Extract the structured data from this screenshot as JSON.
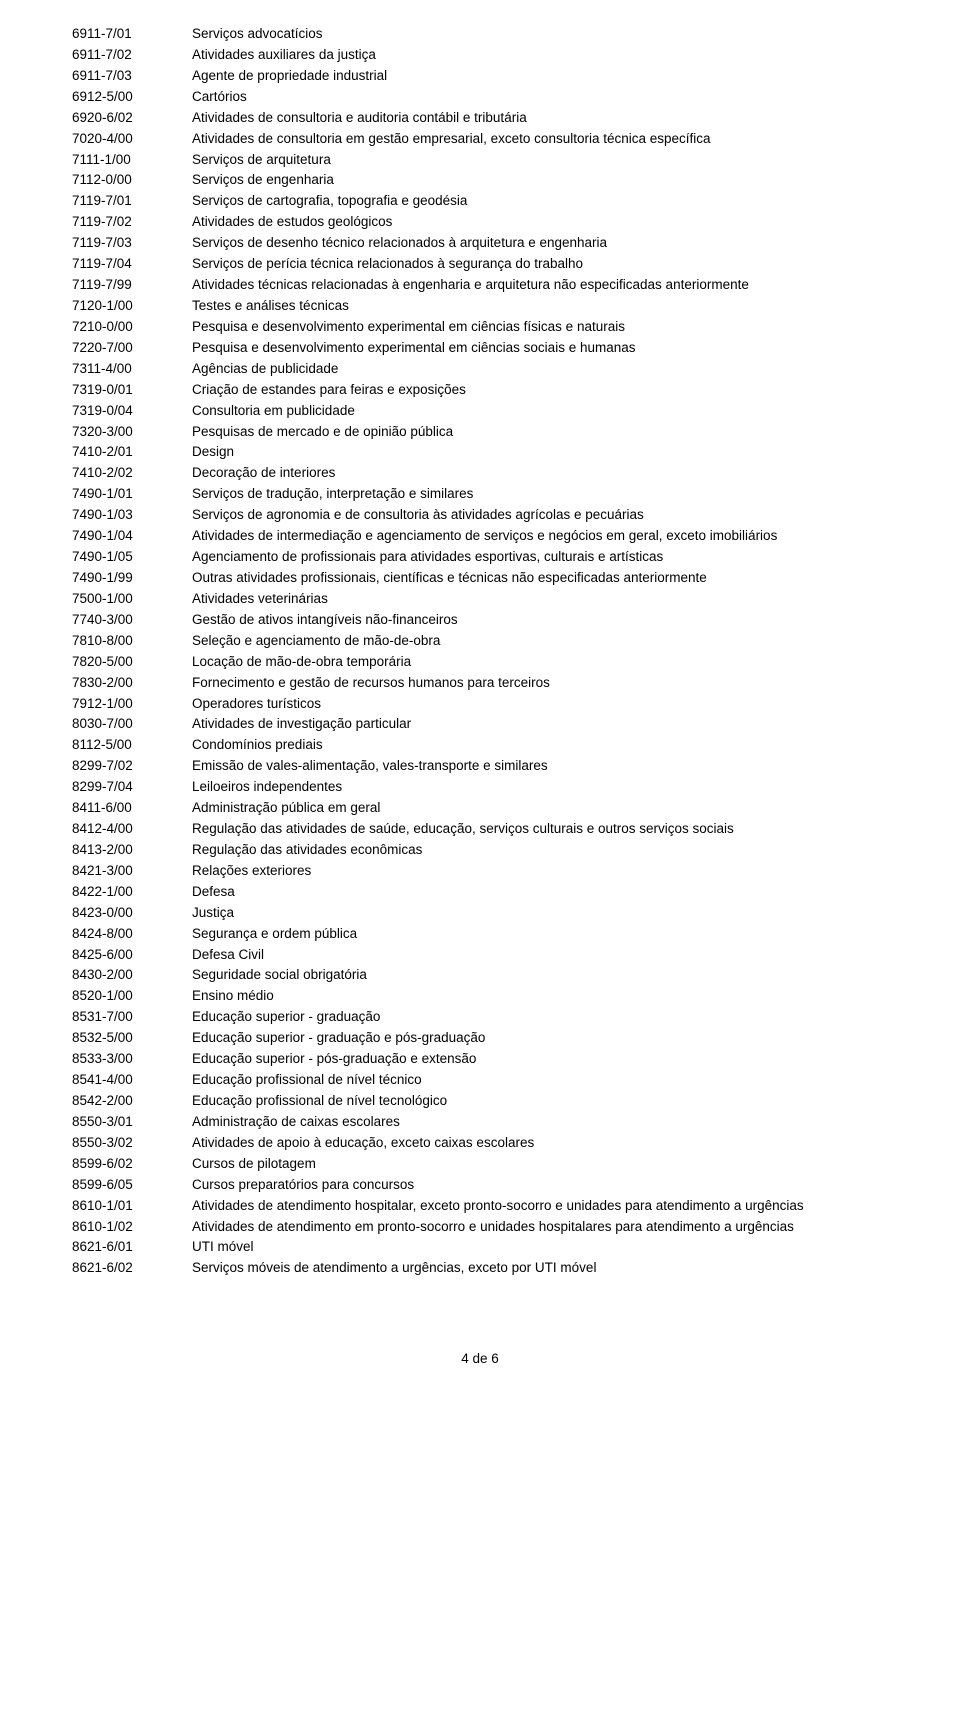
{
  "rows": [
    {
      "code": "6911-7/01",
      "desc": "Serviços advocatícios"
    },
    {
      "code": "6911-7/02",
      "desc": "Atividades auxiliares da justiça"
    },
    {
      "code": "6911-7/03",
      "desc": "Agente de propriedade industrial"
    },
    {
      "code": "6912-5/00",
      "desc": "Cartórios"
    },
    {
      "code": "6920-6/02",
      "desc": "Atividades de consultoria e auditoria contábil e tributária"
    },
    {
      "code": "7020-4/00",
      "desc": "Atividades de consultoria em gestão empresarial, exceto consultoria técnica específica"
    },
    {
      "code": "7111-1/00",
      "desc": "Serviços de arquitetura"
    },
    {
      "code": "7112-0/00",
      "desc": "Serviços de engenharia"
    },
    {
      "code": "7119-7/01",
      "desc": "Serviços de cartografia, topografia e geodésia"
    },
    {
      "code": "7119-7/02",
      "desc": "Atividades de estudos geológicos"
    },
    {
      "code": "7119-7/03",
      "desc": "Serviços de desenho técnico relacionados à arquitetura e engenharia"
    },
    {
      "code": "7119-7/04",
      "desc": "Serviços de perícia técnica relacionados à segurança do trabalho"
    },
    {
      "code": "7119-7/99",
      "desc": "Atividades técnicas relacionadas à engenharia e arquitetura não especificadas anteriormente"
    },
    {
      "code": "7120-1/00",
      "desc": "Testes e análises técnicas"
    },
    {
      "code": "7210-0/00",
      "desc": "Pesquisa e desenvolvimento experimental em ciências físicas e naturais"
    },
    {
      "code": "7220-7/00",
      "desc": "Pesquisa e desenvolvimento experimental em ciências sociais e humanas"
    },
    {
      "code": "7311-4/00",
      "desc": "Agências de publicidade"
    },
    {
      "code": "7319-0/01",
      "desc": "Criação de estandes para feiras e exposições"
    },
    {
      "code": "7319-0/04",
      "desc": "Consultoria em publicidade"
    },
    {
      "code": "7320-3/00",
      "desc": "Pesquisas de mercado e de opinião pública"
    },
    {
      "code": "7410-2/01",
      "desc": "Design"
    },
    {
      "code": "7410-2/02",
      "desc": "Decoração de interiores"
    },
    {
      "code": "7490-1/01",
      "desc": "Serviços de tradução, interpretação e similares"
    },
    {
      "code": "7490-1/03",
      "desc": "Serviços de agronomia e de consultoria às atividades agrícolas e pecuárias"
    },
    {
      "code": "7490-1/04",
      "desc": "Atividades de intermediação e agenciamento de serviços e negócios em geral, exceto imobiliários"
    },
    {
      "code": "7490-1/05",
      "desc": "Agenciamento de profissionais para atividades esportivas, culturais e artísticas"
    },
    {
      "code": "7490-1/99",
      "desc": "Outras atividades profissionais, científicas e técnicas não especificadas anteriormente"
    },
    {
      "code": "7500-1/00",
      "desc": "Atividades veterinárias"
    },
    {
      "code": "7740-3/00",
      "desc": "Gestão de ativos intangíveis não-financeiros"
    },
    {
      "code": "7810-8/00",
      "desc": "Seleção e agenciamento de mão-de-obra"
    },
    {
      "code": "7820-5/00",
      "desc": "Locação de mão-de-obra temporária"
    },
    {
      "code": "7830-2/00",
      "desc": "Fornecimento e gestão de recursos humanos para terceiros"
    },
    {
      "code": "7912-1/00",
      "desc": "Operadores turísticos"
    },
    {
      "code": "8030-7/00",
      "desc": "Atividades de investigação particular"
    },
    {
      "code": "8112-5/00",
      "desc": "Condomínios prediais"
    },
    {
      "code": "8299-7/02",
      "desc": "Emissão de vales-alimentação, vales-transporte e similares"
    },
    {
      "code": "8299-7/04",
      "desc": "Leiloeiros independentes"
    },
    {
      "code": "8411-6/00",
      "desc": "Administração pública em geral"
    },
    {
      "code": "8412-4/00",
      "desc": "Regulação das atividades de saúde, educação, serviços culturais e outros serviços sociais"
    },
    {
      "code": "8413-2/00",
      "desc": "Regulação das atividades econômicas"
    },
    {
      "code": "8421-3/00",
      "desc": "Relações exteriores"
    },
    {
      "code": "8422-1/00",
      "desc": "Defesa"
    },
    {
      "code": "8423-0/00",
      "desc": "Justiça"
    },
    {
      "code": "8424-8/00",
      "desc": "Segurança e ordem pública"
    },
    {
      "code": "8425-6/00",
      "desc": "Defesa Civil"
    },
    {
      "code": "8430-2/00",
      "desc": "Seguridade social obrigatória"
    },
    {
      "code": "8520-1/00",
      "desc": "Ensino médio"
    },
    {
      "code": "8531-7/00",
      "desc": "Educação superior - graduação"
    },
    {
      "code": "8532-5/00",
      "desc": "Educação superior - graduação e pós-graduação"
    },
    {
      "code": "8533-3/00",
      "desc": "Educação superior - pós-graduação e extensão"
    },
    {
      "code": "8541-4/00",
      "desc": "Educação profissional de nível técnico"
    },
    {
      "code": "8542-2/00",
      "desc": "Educação profissional de nível tecnológico"
    },
    {
      "code": "8550-3/01",
      "desc": "Administração de caixas escolares"
    },
    {
      "code": "8550-3/02",
      "desc": "Atividades de apoio à educação, exceto caixas escolares"
    },
    {
      "code": "8599-6/02",
      "desc": "Cursos de pilotagem"
    },
    {
      "code": "8599-6/05",
      "desc": "Cursos preparatórios para concursos"
    },
    {
      "code": "8610-1/01",
      "desc": "Atividades de atendimento hospitalar, exceto pronto-socorro e unidades para atendimento a urgências"
    },
    {
      "code": "8610-1/02",
      "desc": "Atividades de atendimento em pronto-socorro e unidades hospitalares para atendimento a urgências"
    },
    {
      "code": "8621-6/01",
      "desc": "UTI móvel"
    },
    {
      "code": "8621-6/02",
      "desc": "Serviços móveis de atendimento a urgências, exceto por UTI móvel"
    }
  ],
  "footer": "4 de 6"
}
